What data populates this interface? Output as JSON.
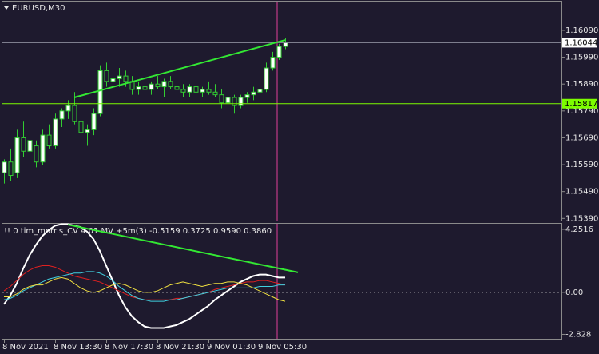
{
  "chart_data": [
    {
      "type": "candlestick",
      "title": "EURUSD,M30",
      "categories": [
        "8 Nov 2021",
        null,
        null,
        null,
        null,
        null,
        null,
        null,
        "8 Nov 13:30",
        null,
        null,
        null,
        null,
        null,
        null,
        null,
        "8 Nov 17:30",
        null,
        null,
        null,
        null,
        null,
        null,
        null,
        "8 Nov 21:30",
        null,
        null,
        null,
        null,
        null,
        null,
        null,
        "9 Nov 01:30",
        null,
        null,
        null,
        null,
        null,
        null,
        null,
        "9 Nov 05:30",
        null,
        null,
        null,
        null
      ],
      "open": [
        1.1556,
        1.156,
        1.1556,
        1.1569,
        1.1564,
        1.1566,
        1.156,
        1.157,
        1.1566,
        1.1576,
        1.1579,
        1.1581,
        1.1575,
        1.1571,
        1.1572,
        1.1578,
        1.1594,
        1.159,
        1.1591,
        1.1592,
        1.159,
        1.1587,
        1.1588,
        1.1587,
        1.1589,
        1.1588,
        1.159,
        1.1588,
        1.1587,
        1.1586,
        1.1588,
        1.1586,
        1.1587,
        1.1586,
        1.1585,
        1.1582,
        1.1584,
        1.1581,
        1.1584,
        1.1585,
        1.1586,
        1.1587,
        1.1595,
        1.1599,
        1.1603
      ],
      "high": [
        1.1561,
        1.1565,
        1.1572,
        1.1575,
        1.157,
        1.1568,
        1.1572,
        1.1574,
        1.1578,
        1.158,
        1.1583,
        1.1586,
        1.1583,
        1.1574,
        1.158,
        1.1596,
        1.1597,
        1.1594,
        1.1595,
        1.1594,
        1.1592,
        1.159,
        1.159,
        1.159,
        1.1592,
        1.1591,
        1.1592,
        1.159,
        1.1589,
        1.1589,
        1.159,
        1.1588,
        1.159,
        1.1589,
        1.1587,
        1.1586,
        1.1585,
        1.1585,
        1.1586,
        1.1588,
        1.1588,
        1.1597,
        1.1601,
        1.1604,
        1.1606
      ],
      "low": [
        1.1552,
        1.1553,
        1.1554,
        1.1562,
        1.1561,
        1.1558,
        1.1559,
        1.1565,
        1.1565,
        1.1573,
        1.1576,
        1.1574,
        1.1568,
        1.1566,
        1.157,
        1.1577,
        1.1588,
        1.1587,
        1.1588,
        1.1588,
        1.1585,
        1.1585,
        1.1586,
        1.1585,
        1.1587,
        1.1584,
        1.1587,
        1.1585,
        1.1584,
        1.1584,
        1.1585,
        1.1584,
        1.1585,
        1.1584,
        1.158,
        1.1581,
        1.1578,
        1.158,
        1.1582,
        1.1583,
        1.1584,
        1.1586,
        1.1594,
        1.1598,
        1.1602
      ],
      "close": [
        1.156,
        1.1555,
        1.1569,
        1.1564,
        1.1568,
        1.156,
        1.157,
        1.1566,
        1.1576,
        1.1579,
        1.1581,
        1.1575,
        1.1571,
        1.1572,
        1.1578,
        1.1594,
        1.159,
        1.1591,
        1.1592,
        1.159,
        1.1587,
        1.1588,
        1.1587,
        1.1589,
        1.1588,
        1.159,
        1.1588,
        1.1587,
        1.1586,
        1.1588,
        1.1586,
        1.1587,
        1.1586,
        1.1585,
        1.1582,
        1.1584,
        1.1581,
        1.1584,
        1.1585,
        1.1586,
        1.1587,
        1.1595,
        1.1599,
        1.1603,
        1.16044
      ],
      "bull_color": "#ffffff",
      "bear_color": "#1e1a2e",
      "wick_color": "#32cd32",
      "ylim": [
        1.15379,
        1.16197
      ],
      "yticks": [
        {
          "value": 1.1609,
          "label": "1.16090"
        },
        {
          "value": 1.1599,
          "label": "1.15990"
        },
        {
          "value": 1.1589,
          "label": "1.15890"
        },
        {
          "value": 1.1579,
          "label": "1.15790"
        },
        {
          "value": 1.1569,
          "label": "1.15690"
        },
        {
          "value": 1.1559,
          "label": "1.15590"
        },
        {
          "value": 1.1549,
          "label": "1.15490"
        },
        {
          "value": 1.1539,
          "label": "1.15390"
        }
      ],
      "hlines": [
        {
          "value": 1.16044,
          "label": "1.16044",
          "color": "#8c8c9c",
          "box": "#ffffff"
        },
        {
          "value": 1.15817,
          "label": "1.15817",
          "color": "#7cfc00",
          "box": "#7cfc00"
        }
      ],
      "trendlines": [
        {
          "x": [
            11,
            44
          ],
          "y": [
            1.1584,
            1.16054
          ],
          "color": "#33e833"
        }
      ]
    },
    {
      "type": "line",
      "title": "!! 0 tim_morris_CV 4.01 MV +5m(3) -0.5159 0.3725 0.9590 0.3860",
      "series": [
        {
          "color": "#ffffff",
          "values": [
            -0.8,
            -0.2,
            0.6,
            1.6,
            2.5,
            3.2,
            3.8,
            4.2,
            4.5,
            4.6,
            4.6,
            4.5,
            4.4,
            4.1,
            3.6,
            2.8,
            1.8,
            0.8,
            -0.2,
            -1.0,
            -1.6,
            -2.0,
            -2.3,
            -2.4,
            -2.4,
            -2.4,
            -2.3,
            -2.2,
            -2.0,
            -1.8,
            -1.5,
            -1.2,
            -0.9,
            -0.5,
            -0.2,
            0.1,
            0.4,
            0.7,
            0.9,
            1.1,
            1.2,
            1.2,
            1.1,
            1.0,
            1.0
          ]
        },
        {
          "color": "#e02020",
          "values": [
            0.1,
            0.4,
            0.8,
            1.2,
            1.5,
            1.7,
            1.8,
            1.8,
            1.7,
            1.5,
            1.3,
            1.1,
            1.0,
            0.9,
            0.8,
            0.7,
            0.5,
            0.3,
            0.1,
            -0.1,
            -0.3,
            -0.4,
            -0.5,
            -0.5,
            -0.5,
            -0.5,
            -0.5,
            -0.4,
            -0.4,
            -0.3,
            -0.2,
            -0.1,
            0.0,
            0.2,
            0.3,
            0.4,
            0.5,
            0.6,
            0.7,
            0.7,
            0.8,
            0.8,
            0.7,
            0.6,
            0.5
          ]
        },
        {
          "color": "#40d0e0",
          "values": [
            -0.5,
            -0.4,
            -0.2,
            0.1,
            0.3,
            0.5,
            0.7,
            0.9,
            1.0,
            1.1,
            1.2,
            1.3,
            1.3,
            1.4,
            1.4,
            1.3,
            1.1,
            0.8,
            0.4,
            0.1,
            -0.2,
            -0.4,
            -0.5,
            -0.6,
            -0.6,
            -0.6,
            -0.5,
            -0.5,
            -0.4,
            -0.3,
            -0.2,
            -0.1,
            0.0,
            0.1,
            0.2,
            0.3,
            0.3,
            0.3,
            0.3,
            0.3,
            0.4,
            0.4,
            0.4,
            0.5,
            0.5
          ]
        },
        {
          "color": "#f0e040",
          "values": [
            -0.3,
            -0.3,
            -0.1,
            0.2,
            0.4,
            0.5,
            0.5,
            0.7,
            0.9,
            1.0,
            0.9,
            0.6,
            0.3,
            0.1,
            0.0,
            0.1,
            0.3,
            0.5,
            0.6,
            0.5,
            0.3,
            0.1,
            0.0,
            0.0,
            0.1,
            0.3,
            0.5,
            0.6,
            0.7,
            0.6,
            0.5,
            0.4,
            0.5,
            0.6,
            0.6,
            0.7,
            0.7,
            0.6,
            0.5,
            0.3,
            0.1,
            -0.1,
            -0.3,
            -0.5,
            -0.6
          ]
        }
      ],
      "ylim": [
        -3.18,
        4.68
      ],
      "yticks": [
        4.2516,
        {
          "value": 0,
          "label": "0.00"
        },
        -2.828
      ],
      "zero_line": true,
      "trendlines": [
        {
          "x": [
            10,
            46
          ],
          "y": [
            4.57,
            1.35
          ],
          "color": "#33e833"
        }
      ]
    }
  ]
}
